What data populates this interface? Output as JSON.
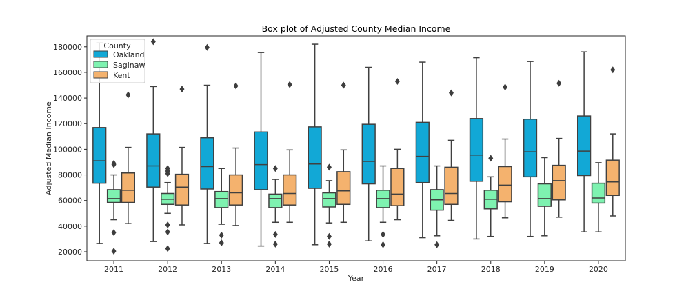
{
  "chart_data": {
    "type": "box",
    "title": "Box plot of Adjusted County Median Income",
    "xlabel": "Year",
    "ylabel": "Adjusted Median Income",
    "ylim": [
      13000,
      188500
    ],
    "y_ticks": [
      20000,
      40000,
      60000,
      80000,
      100000,
      120000,
      140000,
      160000,
      180000
    ],
    "categories": [
      "2011",
      "2012",
      "2013",
      "2014",
      "2015",
      "2016",
      "2017",
      "2018",
      "2019",
      "2020"
    ],
    "grid": false,
    "legend": {
      "title": "County",
      "placement": "top-left"
    },
    "series": [
      {
        "name": "Oakland",
        "color": "#12a8d6",
        "boxes": [
          {
            "whislo": 26500,
            "q1": 73500,
            "med": 91000,
            "q3": 117000,
            "whishi": 183000,
            "fliers": []
          },
          {
            "whislo": 28000,
            "q1": 70500,
            "med": 87000,
            "q3": 112000,
            "whishi": 149000,
            "fliers": [
              184000
            ]
          },
          {
            "whislo": 26500,
            "q1": 69000,
            "med": 86500,
            "q3": 109000,
            "whishi": 150000,
            "fliers": [
              179500
            ]
          },
          {
            "whislo": 24500,
            "q1": 68500,
            "med": 88000,
            "q3": 113500,
            "whishi": 175500,
            "fliers": []
          },
          {
            "whislo": 25500,
            "q1": 69500,
            "med": 88500,
            "q3": 117500,
            "whishi": 182000,
            "fliers": []
          },
          {
            "whislo": 28500,
            "q1": 73000,
            "med": 90500,
            "q3": 119500,
            "whishi": 164000,
            "fliers": []
          },
          {
            "whislo": 31000,
            "q1": 74000,
            "med": 94500,
            "q3": 121000,
            "whishi": 168000,
            "fliers": []
          },
          {
            "whislo": 30000,
            "q1": 75000,
            "med": 95500,
            "q3": 124000,
            "whishi": 171500,
            "fliers": []
          },
          {
            "whislo": 32000,
            "q1": 78500,
            "med": 98000,
            "q3": 123500,
            "whishi": 168500,
            "fliers": []
          },
          {
            "whislo": 35500,
            "q1": 79500,
            "med": 98500,
            "q3": 126000,
            "whishi": 176000,
            "fliers": []
          }
        ]
      },
      {
        "name": "Saginaw",
        "color": "#7ef2b0",
        "boxes": [
          {
            "whislo": 45000,
            "q1": 58500,
            "med": 61500,
            "q3": 68500,
            "whishi": 80000,
            "fliers": [
              88000,
              89000,
              35000,
              20500
            ]
          },
          {
            "whislo": 50000,
            "q1": 57000,
            "med": 61000,
            "q3": 65500,
            "whishi": 74000,
            "fliers": [
              85000,
              83000,
              81000,
              41000,
              35500,
              22500
            ]
          },
          {
            "whislo": 41500,
            "q1": 54500,
            "med": 61500,
            "q3": 67000,
            "whishi": 85000,
            "fliers": [
              33000,
              27000
            ]
          },
          {
            "whislo": 43000,
            "q1": 54500,
            "med": 61500,
            "q3": 65000,
            "whishi": 76500,
            "fliers": [
              85000,
              33500,
              26000
            ]
          },
          {
            "whislo": 42500,
            "q1": 55000,
            "med": 61500,
            "q3": 66000,
            "whishi": 75500,
            "fliers": [
              86000,
              32000,
              26000
            ]
          },
          {
            "whislo": 43000,
            "q1": 54500,
            "med": 61500,
            "q3": 68000,
            "whishi": 87000,
            "fliers": [
              33500,
              25500
            ]
          },
          {
            "whislo": 32500,
            "q1": 52500,
            "med": 60500,
            "q3": 68500,
            "whishi": 87000,
            "fliers": [
              25500
            ]
          },
          {
            "whislo": 32000,
            "q1": 53500,
            "med": 61000,
            "q3": 68000,
            "whishi": 78500,
            "fliers": [
              93000
            ]
          },
          {
            "whislo": 32500,
            "q1": 55500,
            "med": 61500,
            "q3": 73000,
            "whishi": 93500,
            "fliers": []
          },
          {
            "whislo": 35500,
            "q1": 58000,
            "med": 62000,
            "q3": 73500,
            "whishi": 89500,
            "fliers": []
          }
        ]
      },
      {
        "name": "Kent",
        "color": "#f4b26e",
        "boxes": [
          {
            "whislo": 42000,
            "q1": 58500,
            "med": 68000,
            "q3": 81500,
            "whishi": 101500,
            "fliers": [
              142500
            ]
          },
          {
            "whislo": 41000,
            "q1": 56500,
            "med": 70500,
            "q3": 80500,
            "whishi": 101500,
            "fliers": [
              147000
            ]
          },
          {
            "whislo": 40500,
            "q1": 56500,
            "med": 66000,
            "q3": 80000,
            "whishi": 101000,
            "fliers": [
              149500
            ]
          },
          {
            "whislo": 43000,
            "q1": 56500,
            "med": 65500,
            "q3": 80000,
            "whishi": 99500,
            "fliers": [
              150500
            ]
          },
          {
            "whislo": 43000,
            "q1": 57000,
            "med": 67500,
            "q3": 82500,
            "whishi": 99500,
            "fliers": [
              150000
            ]
          },
          {
            "whislo": 45000,
            "q1": 56000,
            "med": 65000,
            "q3": 85000,
            "whishi": 100000,
            "fliers": [
              153000
            ]
          },
          {
            "whislo": 44500,
            "q1": 57000,
            "med": 65500,
            "q3": 86000,
            "whishi": 107000,
            "fliers": [
              144000
            ]
          },
          {
            "whislo": 46500,
            "q1": 59000,
            "med": 72000,
            "q3": 86500,
            "whishi": 108000,
            "fliers": [
              148500
            ]
          },
          {
            "whislo": 47000,
            "q1": 60500,
            "med": 75500,
            "q3": 87500,
            "whishi": 108500,
            "fliers": [
              151500
            ]
          },
          {
            "whislo": 48000,
            "q1": 64000,
            "med": 74500,
            "q3": 91500,
            "whishi": 112000,
            "fliers": [
              162000
            ]
          }
        ]
      }
    ]
  }
}
